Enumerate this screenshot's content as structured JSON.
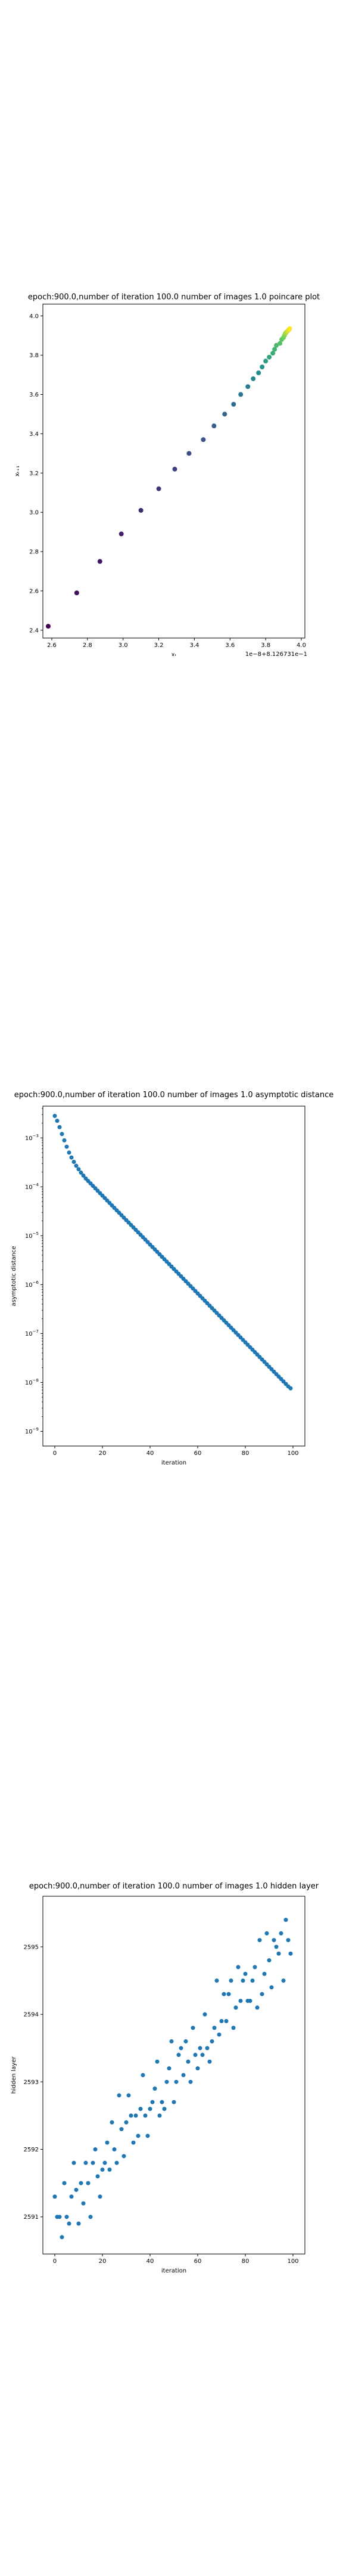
{
  "chart_data": [
    {
      "type": "scatter",
      "title": "epoch:900.0,number of iteration 100.0 number of images 1.0 poincare plot",
      "xlabel": "xₜ",
      "ylabel": "xₜ₊₁",
      "x_offset_label": "1e−8+8.126731e−1",
      "xlim": [
        2.55,
        4.02
      ],
      "ylim": [
        2.36,
        4.06
      ],
      "xticks": [
        "2.6",
        "2.8",
        "3.0",
        "3.2",
        "3.4",
        "3.6",
        "3.8",
        "4.0"
      ],
      "yticks": [
        "2.4",
        "2.6",
        "2.8",
        "3.0",
        "3.2",
        "3.4",
        "3.6",
        "3.8",
        "4.0"
      ],
      "colormap": "viridis",
      "points": [
        [
          2.58,
          2.42
        ],
        [
          2.74,
          2.59
        ],
        [
          2.87,
          2.75
        ],
        [
          2.99,
          2.89
        ],
        [
          3.1,
          3.01
        ],
        [
          3.2,
          3.12
        ],
        [
          3.29,
          3.22
        ],
        [
          3.37,
          3.3
        ],
        [
          3.45,
          3.37
        ],
        [
          3.51,
          3.44
        ],
        [
          3.57,
          3.5
        ],
        [
          3.62,
          3.55
        ],
        [
          3.66,
          3.6
        ],
        [
          3.7,
          3.64
        ],
        [
          3.73,
          3.68
        ],
        [
          3.76,
          3.71
        ],
        [
          3.78,
          3.74
        ],
        [
          3.8,
          3.77
        ],
        [
          3.82,
          3.79
        ],
        [
          3.84,
          3.81
        ],
        [
          3.85,
          3.83
        ],
        [
          3.86,
          3.85
        ],
        [
          3.88,
          3.86
        ],
        [
          3.89,
          3.88
        ],
        [
          3.9,
          3.89
        ],
        [
          3.905,
          3.9
        ],
        [
          3.91,
          3.91
        ],
        [
          3.915,
          3.915
        ],
        [
          3.92,
          3.92
        ],
        [
          3.925,
          3.925
        ],
        [
          3.93,
          3.93
        ],
        [
          3.935,
          3.935
        ]
      ]
    },
    {
      "type": "scatter",
      "title": "epoch:900.0,number of iteration 100.0  number of images 1.0 asymptotic distance",
      "xlabel": "iteration",
      "ylabel": "asymptotic distance",
      "yscale": "log",
      "xlim": [
        -5,
        105
      ],
      "ylim_log10": [
        -9.3,
        -2.35
      ],
      "xticks": [
        0,
        20,
        40,
        60,
        80,
        100
      ],
      "yticks_exp": [
        -3,
        -4,
        -5,
        -6,
        -7,
        -8,
        -9
      ],
      "color": "#1f77b4",
      "x": [
        0,
        1,
        2,
        3,
        4,
        5,
        6,
        7,
        8,
        9,
        10,
        11,
        12,
        13,
        14,
        15,
        16,
        17,
        18,
        19,
        20,
        21,
        22,
        23,
        24,
        25,
        26,
        27,
        28,
        29,
        30,
        31,
        32,
        33,
        34,
        35,
        36,
        37,
        38,
        39,
        40,
        41,
        42,
        43,
        44,
        45,
        46,
        47,
        48,
        49,
        50,
        51,
        52,
        53,
        54,
        55,
        56,
        57,
        58,
        59,
        60,
        61,
        62,
        63,
        64,
        65,
        66,
        67,
        68,
        69,
        70,
        71,
        72,
        73,
        74,
        75,
        76,
        77,
        78,
        79,
        80,
        81,
        82,
        83,
        84,
        85,
        86,
        87,
        88,
        89,
        90,
        91,
        92,
        93,
        94,
        95,
        96,
        97,
        98,
        99
      ],
      "log10_y": [
        -2.55,
        -2.65,
        -2.78,
        -2.92,
        -3.05,
        -3.18,
        -3.3,
        -3.4,
        -3.49,
        -3.57,
        -3.64,
        -3.71,
        -3.77,
        -3.83,
        -3.88,
        -3.93,
        -3.98,
        -4.03,
        -4.08,
        -4.13,
        -4.18,
        -4.23,
        -4.28,
        -4.33,
        -4.38,
        -4.43,
        -4.48,
        -4.53,
        -4.58,
        -4.63,
        -4.68,
        -4.73,
        -4.78,
        -4.83,
        -4.88,
        -4.93,
        -4.98,
        -5.03,
        -5.08,
        -5.13,
        -5.18,
        -5.23,
        -5.28,
        -5.33,
        -5.38,
        -5.43,
        -5.48,
        -5.53,
        -5.58,
        -5.63,
        -5.68,
        -5.73,
        -5.78,
        -5.83,
        -5.88,
        -5.93,
        -5.98,
        -6.03,
        -6.08,
        -6.13,
        -6.18,
        -6.23,
        -6.28,
        -6.33,
        -6.38,
        -6.43,
        -6.48,
        -6.53,
        -6.58,
        -6.63,
        -6.68,
        -6.73,
        -6.78,
        -6.83,
        -6.88,
        -6.93,
        -6.98,
        -7.03,
        -7.08,
        -7.13,
        -7.18,
        -7.23,
        -7.28,
        -7.33,
        -7.38,
        -7.43,
        -7.48,
        -7.53,
        -7.58,
        -7.63,
        -7.68,
        -7.73,
        -7.78,
        -7.83,
        -7.88,
        -7.93,
        -7.98,
        -8.03,
        -8.08,
        -8.12
      ]
    },
    {
      "type": "scatter",
      "title": "epoch:900.0,number of iteration 100.0  number of images 1.0 hidden layer",
      "xlabel": "iteration",
      "ylabel": "hidden layer",
      "xlim": [
        -5,
        105
      ],
      "ylim": [
        2590.45,
        2595.75
      ],
      "xticks": [
        0,
        20,
        40,
        60,
        80,
        100
      ],
      "yticks": [
        2591,
        2592,
        2593,
        2594,
        2595
      ],
      "color": "#1f77b4",
      "x": [
        0,
        1,
        2,
        3,
        4,
        5,
        6,
        7,
        8,
        9,
        10,
        11,
        12,
        13,
        14,
        15,
        16,
        17,
        18,
        19,
        20,
        21,
        22,
        23,
        24,
        25,
        26,
        27,
        28,
        29,
        30,
        31,
        32,
        33,
        34,
        35,
        36,
        37,
        38,
        39,
        40,
        41,
        42,
        43,
        44,
        45,
        46,
        47,
        48,
        49,
        50,
        51,
        52,
        53,
        54,
        55,
        56,
        57,
        58,
        59,
        60,
        61,
        62,
        63,
        64,
        65,
        66,
        67,
        68,
        69,
        70,
        71,
        72,
        73,
        74,
        75,
        76,
        77,
        78,
        79,
        80,
        81,
        82,
        83,
        84,
        85,
        86,
        87,
        88,
        89,
        90,
        91,
        92,
        93,
        94,
        95,
        96,
        97,
        98,
        99
      ],
      "y": [
        2591.3,
        2591.0,
        2591.0,
        2590.7,
        2591.5,
        2591.0,
        2590.9,
        2591.3,
        2591.8,
        2591.4,
        2590.9,
        2591.5,
        2591.2,
        2591.8,
        2591.5,
        2591.0,
        2591.8,
        2592.0,
        2591.6,
        2591.3,
        2591.7,
        2591.8,
        2592.1,
        2591.7,
        2592.4,
        2592.0,
        2591.8,
        2592.8,
        2592.3,
        2591.9,
        2592.4,
        2592.8,
        2592.5,
        2592.1,
        2592.5,
        2592.2,
        2592.6,
        2593.1,
        2592.5,
        2592.2,
        2592.6,
        2592.7,
        2592.9,
        2593.3,
        2592.5,
        2592.7,
        2592.6,
        2593.0,
        2593.2,
        2593.6,
        2592.7,
        2593.0,
        2593.4,
        2593.5,
        2593.1,
        2593.6,
        2593.3,
        2593.0,
        2593.8,
        2593.4,
        2593.2,
        2593.5,
        2593.4,
        2594.0,
        2593.5,
        2593.3,
        2593.6,
        2593.8,
        2594.5,
        2593.7,
        2593.9,
        2594.3,
        2593.9,
        2594.3,
        2594.5,
        2593.8,
        2594.1,
        2594.7,
        2594.2,
        2594.5,
        2594.6,
        2594.2,
        2594.2,
        2594.5,
        2594.7,
        2594.1,
        2595.1,
        2594.3,
        2594.6,
        2595.2,
        2594.8,
        2594.4,
        2595.1,
        2595.0,
        2594.9,
        2595.2,
        2594.5,
        2595.4,
        2595.1,
        2594.9
      ]
    }
  ]
}
